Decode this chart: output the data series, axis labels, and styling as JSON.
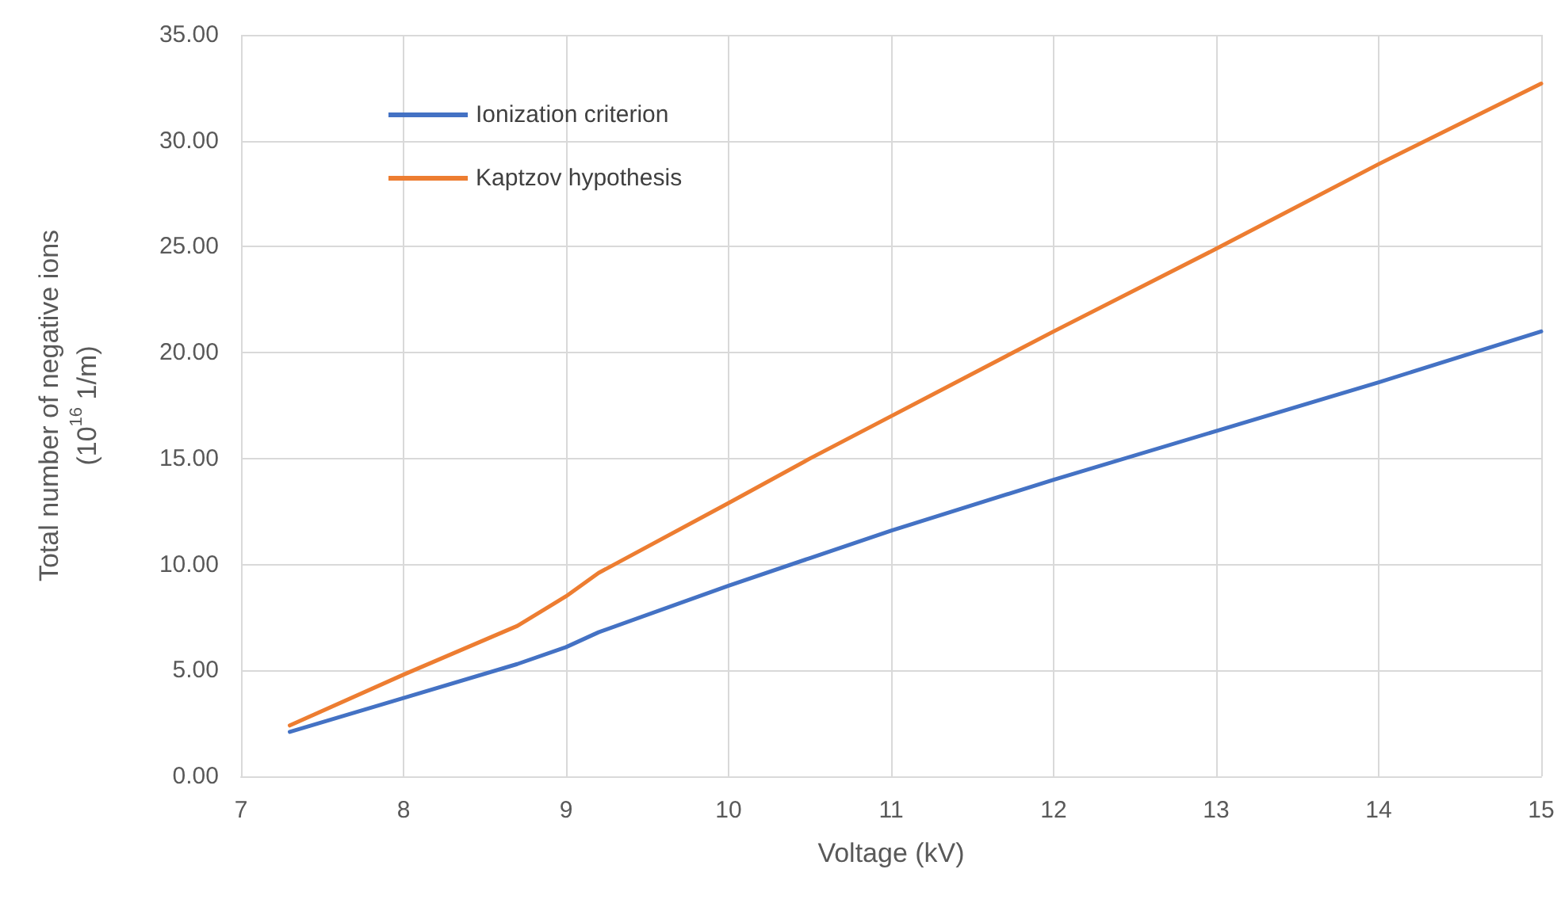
{
  "chart_data": {
    "type": "line",
    "xlabel": "Voltage (kV)",
    "ylabel": "Total number of negative ions\n(10$^{16}$ 1/m)",
    "series": [
      {
        "name": "Ionization criterion",
        "color": "#4472c4",
        "x": [
          7.3,
          8,
          8.7,
          9,
          9.2,
          10,
          10.5,
          11,
          12,
          13,
          14,
          15
        ],
        "values": [
          2.1,
          3.7,
          5.3,
          6.1,
          6.8,
          9.0,
          10.3,
          11.6,
          14.0,
          16.3,
          18.6,
          21.0
        ]
      },
      {
        "name": "Kaptzov hypothesis",
        "color": "#ed7d31",
        "x": [
          7.3,
          8,
          8.7,
          9,
          9.2,
          10,
          10.5,
          11,
          12,
          13,
          14,
          15
        ],
        "values": [
          2.4,
          4.8,
          7.1,
          8.5,
          9.6,
          12.9,
          15.0,
          17.0,
          21.0,
          24.9,
          28.9,
          32.7
        ]
      }
    ],
    "xlim": [
      7,
      15
    ],
    "xticks": [
      7,
      8,
      9,
      10,
      11,
      12,
      13,
      14,
      15
    ],
    "ylim": [
      0,
      35
    ],
    "yticks": [
      {
        "value": 0,
        "label": "0.00"
      },
      {
        "value": 5,
        "label": "5.00"
      },
      {
        "value": 10,
        "label": "10.00"
      },
      {
        "value": 15,
        "label": "15.00"
      },
      {
        "value": 20,
        "label": "20.00"
      },
      {
        "value": 25,
        "label": "25.00"
      },
      {
        "value": 30,
        "label": "30.00"
      },
      {
        "value": 35,
        "label": "35.00"
      }
    ],
    "grid": true,
    "legend": "top left",
    "marker": "none",
    "line_style": "solid"
  }
}
